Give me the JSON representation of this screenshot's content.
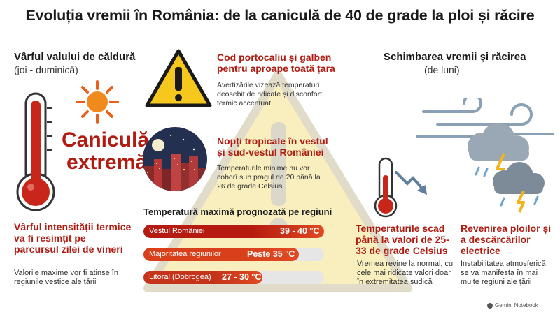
{
  "title": "Evoluția vremii în România: de la caniculă de 40 de grade la ploi și răcire",
  "left": {
    "heading": "Vârful valului de căldură",
    "subheading": "(joi - duminică)",
    "big_label_line1": "Caniculă",
    "big_label_line2": "extremă",
    "peak_title": "Vârful intensității termice va fi resimțit pe parcursul zilei de vineri",
    "peak_text": "Valorile maxime vor fi atinse în regiunile vestice ale țării"
  },
  "center": {
    "warning_title": "Cod portocaliu și galben pentru aproape toată țara",
    "warning_text": "Avertizările vizează temperaturi deosebit de ridicate și disconfort termic accentuat",
    "nights_title": "Nopți tropicale în vestul și sud-vestul României",
    "nights_text": "Temperaturile minime nu vor coborî sub pragul de 20 până la 26 de grade Celsius",
    "regions_heading": "Temperatură maximă prognozată pe regiuni",
    "regions": [
      {
        "name": "Vestul României",
        "value": "39 - 40 °C",
        "level": 1.0,
        "color": "#b51b10"
      },
      {
        "name": "Majoritatea regiunilor",
        "value": "Peste 35 °C",
        "level": 0.86,
        "color": "#d8401c"
      },
      {
        "name": "Litoral (Dobrogea)",
        "value": "27 - 30 °C",
        "level": 0.66,
        "color": "#c5341a"
      }
    ]
  },
  "right": {
    "heading": "Schimbarea vremii și răcirea",
    "subheading": "(de luni)",
    "drop_title": "Temperaturile scad până la valori de 25-33 de grade Celsius",
    "drop_text": "Vremea revine la normal, cu cele mai ridicate valori doar în extremitatea sudică",
    "rain_title": "Revenirea ploilor și a descărcărilor electrice",
    "rain_text": "Instabilitatea atmosferică se va manifesta în mai multe regiuni ale țării"
  },
  "footer": {
    "brand": "Gemini Notebook"
  },
  "colors": {
    "accent_red": "#b01c12",
    "warning_yellow": "#f6c81d",
    "bar_track": "#e6e6e6"
  }
}
